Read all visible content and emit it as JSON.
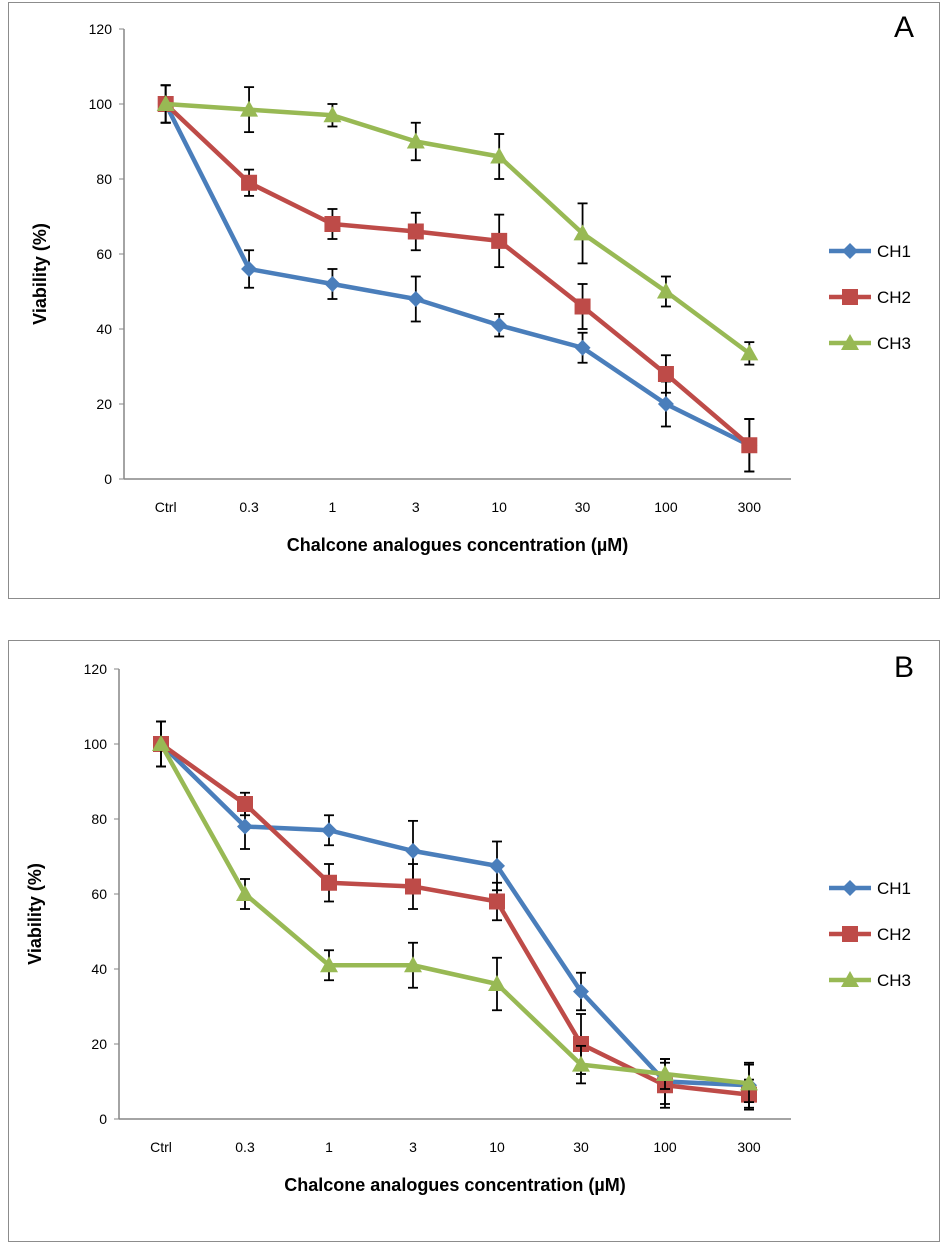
{
  "chart_data": [
    {
      "type": "line",
      "panel_label": "A",
      "xlabel": "Chalcone analogues concentration (µM)",
      "ylabel": "Viability (%)",
      "categories": [
        "Ctrl",
        "0.3",
        "1",
        "3",
        "10",
        "30",
        "100",
        "300"
      ],
      "ylim": [
        0,
        120
      ],
      "yticks": [
        0,
        20,
        40,
        60,
        80,
        100,
        120
      ],
      "grid": false,
      "legend": "right",
      "series": [
        {
          "name": "CH1",
          "color": "#4a7ebb",
          "marker": "diamond",
          "values": [
            100,
            56,
            52,
            48,
            41,
            35,
            20,
            9
          ],
          "errors": [
            5,
            5,
            4,
            6,
            3,
            4,
            6,
            7
          ]
        },
        {
          "name": "CH2",
          "color": "#be4b48",
          "marker": "square",
          "values": [
            100,
            79,
            68,
            66,
            63.5,
            46,
            28,
            9
          ],
          "errors": [
            5,
            3.5,
            4,
            5,
            7,
            6,
            5,
            7
          ]
        },
        {
          "name": "CH3",
          "color": "#98b954",
          "marker": "triangle",
          "values": [
            100,
            98.5,
            97,
            90,
            86,
            65.5,
            50,
            33.5
          ],
          "errors": [
            5,
            6,
            3,
            5,
            6,
            8,
            4,
            3
          ]
        }
      ]
    },
    {
      "type": "line",
      "panel_label": "B",
      "xlabel": "Chalcone analogues concentration (µM)",
      "ylabel": "Viability (%)",
      "categories": [
        "Ctrl",
        "0.3",
        "1",
        "3",
        "10",
        "30",
        "100",
        "300"
      ],
      "ylim": [
        0,
        120
      ],
      "yticks": [
        0,
        20,
        40,
        60,
        80,
        100,
        120
      ],
      "grid": false,
      "legend": "right",
      "series": [
        {
          "name": "CH1",
          "color": "#4a7ebb",
          "marker": "diamond",
          "values": [
            100,
            78,
            77,
            71.5,
            67.5,
            34,
            10,
            9
          ],
          "errors": [
            6,
            6,
            4,
            8,
            6.5,
            5,
            6,
            6
          ]
        },
        {
          "name": "CH2",
          "color": "#be4b48",
          "marker": "square",
          "values": [
            100,
            84,
            63,
            62,
            58,
            20,
            9,
            6.5
          ],
          "errors": [
            6,
            3,
            5,
            6,
            5,
            8,
            6,
            4
          ]
        },
        {
          "name": "CH3",
          "color": "#98b954",
          "marker": "triangle",
          "values": [
            100,
            60,
            41,
            41,
            36,
            14.5,
            12,
            9.5
          ],
          "errors": [
            6,
            4,
            4,
            6,
            7,
            5,
            4,
            5
          ]
        }
      ]
    }
  ]
}
